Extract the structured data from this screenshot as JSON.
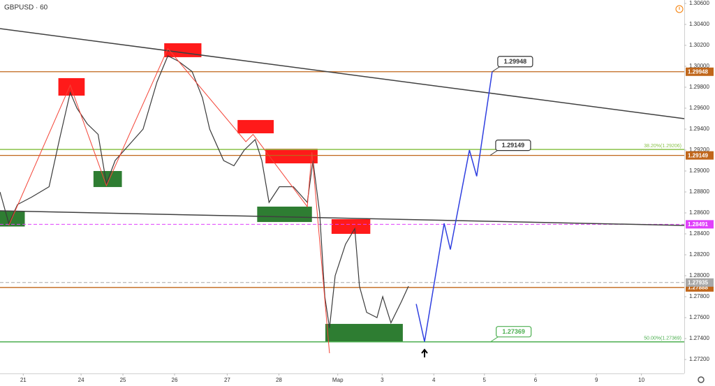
{
  "chart_data": {
    "type": "line",
    "title": "GBPUSD · 60",
    "color": "#3a3a3a",
    "x": [
      -0.45,
      -0.28,
      -0.11,
      0.16,
      0.5,
      0.7,
      0.91,
      1.04,
      1.24,
      1.45,
      1.61,
      1.78,
      2.05,
      2.32,
      2.59,
      2.8,
      3,
      3.27,
      3.47,
      3.61,
      3.88,
      4.08,
      4.28,
      4.49,
      4.62,
      4.76,
      4.96,
      5.23,
      5.5,
      5.61,
      5.74,
      5.84,
      5.93,
      6.04,
      6.24,
      6.42,
      6.51,
      6.65,
      6.85,
      6.96,
      7.12,
      7.32,
      7.46
    ],
    "values": [
      1.288,
      1.285,
      1.2868,
      1.2875,
      1.2885,
      1.293,
      1.2975,
      1.296,
      1.2945,
      1.2935,
      1.2888,
      1.291,
      1.2925,
      1.294,
      1.2985,
      1.301,
      1.3005,
      1.2995,
      1.297,
      1.294,
      1.291,
      1.2905,
      1.292,
      1.293,
      1.291,
      1.287,
      1.2885,
      1.2885,
      1.287,
      1.291,
      1.286,
      1.278,
      1.275,
      1.28,
      1.283,
      1.2845,
      1.279,
      1.2765,
      1.276,
      1.278,
      1.2755,
      1.2775,
      1.279
    ],
    "xlim": [
      -0.45,
      12.8
    ],
    "ylim": [
      1.27067,
      1.30633
    ],
    "xticks": [
      {
        "value": 0,
        "label": "21"
      },
      {
        "value": 1.12,
        "label": "24"
      },
      {
        "value": 1.93,
        "label": "25"
      },
      {
        "value": 2.93,
        "label": "26"
      },
      {
        "value": 3.95,
        "label": "27"
      },
      {
        "value": 4.95,
        "label": "28"
      },
      {
        "value": 6.09,
        "label": "Мар"
      },
      {
        "value": 6.95,
        "label": "3"
      },
      {
        "value": 7.95,
        "label": "4"
      },
      {
        "value": 8.93,
        "label": "5"
      },
      {
        "value": 9.92,
        "label": "6"
      },
      {
        "value": 11.1,
        "label": "9"
      },
      {
        "value": 11.97,
        "label": "10"
      }
    ],
    "yticks": [
      {
        "value": 1.306,
        "label": "1.30600"
      },
      {
        "value": 1.304,
        "label": "1.30400"
      },
      {
        "value": 1.302,
        "label": "1.30200"
      },
      {
        "value": 1.3,
        "label": "1.30000"
      },
      {
        "value": 1.298,
        "label": "1.29800"
      },
      {
        "value": 1.296,
        "label": "1.29600"
      },
      {
        "value": 1.294,
        "label": "1.29400"
      },
      {
        "value": 1.292,
        "label": "1.29200"
      },
      {
        "value": 1.29,
        "label": "1.29000"
      },
      {
        "value": 1.288,
        "label": "1.28800"
      },
      {
        "value": 1.286,
        "label": "1.28600"
      },
      {
        "value": 1.284,
        "label": "1.28400"
      },
      {
        "value": 1.282,
        "label": "1.28200"
      },
      {
        "value": 1.28,
        "label": "1.28000"
      },
      {
        "value": 1.278,
        "label": "1.27800"
      },
      {
        "value": 1.276,
        "label": "1.27600"
      },
      {
        "value": 1.274,
        "label": "1.27400"
      },
      {
        "value": 1.272,
        "label": "1.27200"
      }
    ],
    "levels": [
      {
        "value": 1.29948,
        "color": "#c0661a"
      },
      {
        "value": 1.29149,
        "color": "#c0661a"
      },
      {
        "value": 1.27888,
        "color": "#c0661a"
      },
      {
        "value": 1.28491,
        "color": "#e040fb",
        "dashed": true
      },
      {
        "value": 1.27935,
        "color": "#a8a8a8",
        "dashed": true
      }
    ],
    "fib_levels": [
      {
        "value": 1.29206,
        "label": "38.20%(1.29206)",
        "color": "#8bc34a"
      },
      {
        "value": 1.27369,
        "label": "50.00%(1.27369)",
        "color": "#4caf50"
      }
    ],
    "trendlines": [
      {
        "x": [
          -0.45,
          12.8
        ],
        "values": [
          1.3036,
          1.295
        ],
        "color": "#404040"
      },
      {
        "x": [
          -0.45,
          12.8
        ],
        "values": [
          1.2862,
          1.2848
        ],
        "color": "#404040"
      }
    ],
    "zigzag": {
      "color": "#f44336",
      "x": [
        -0.28,
        0.91,
        1.61,
        2.8,
        4.31,
        4.45,
        5.5,
        5.59,
        5.93
      ],
      "values": [
        1.2848,
        1.2982,
        1.2886,
        1.3017,
        1.2928,
        1.2935,
        1.2866,
        1.2918,
        1.2726
      ]
    },
    "projection": {
      "color": "#2f3fe0",
      "x": [
        7.61,
        7.77,
        8.15,
        8.27,
        8.64,
        8.78,
        9.08
      ],
      "values": [
        1.2773,
        1.2737,
        1.285,
        1.2825,
        1.292,
        1.2895,
        1.2995
      ]
    },
    "zones": [
      {
        "x": [
          0.68,
          1.19
        ],
        "values": [
          1.29887,
          1.2972
        ],
        "color": "#ff1a1a"
      },
      {
        "x": [
          2.73,
          3.45
        ],
        "values": [
          1.3022,
          1.30087
        ],
        "color": "#ff1a1a"
      },
      {
        "x": [
          4.15,
          4.85
        ],
        "values": [
          1.29487,
          1.2936
        ],
        "color": "#ff1a1a"
      },
      {
        "x": [
          4.69,
          5.7
        ],
        "values": [
          1.29213,
          1.29073
        ],
        "color": "#ff1a1a"
      },
      {
        "x": [
          5.97,
          6.72
        ],
        "values": [
          1.2854,
          1.284
        ],
        "color": "#ff1a1a"
      },
      {
        "x": [
          -0.45,
          0.03
        ],
        "values": [
          1.2862,
          1.2847
        ],
        "color": "#2e7d32"
      },
      {
        "x": [
          1.36,
          1.91
        ],
        "values": [
          1.29,
          1.28847
        ],
        "color": "#2e7d32"
      },
      {
        "x": [
          4.53,
          5.59
        ],
        "values": [
          1.2866,
          1.28513
        ],
        "color": "#2e7d32"
      },
      {
        "x": [
          5.85,
          7.35
        ],
        "values": [
          1.2754,
          1.27373
        ],
        "color": "#2e7d32"
      }
    ],
    "callouts": [
      {
        "x": 9.08,
        "value": 1.29948,
        "color": "#333333"
      },
      {
        "x": 9.04,
        "value": 1.29149,
        "color": "#333333"
      },
      {
        "x": 9.05,
        "value": 1.27369,
        "color": "#4caf50"
      }
    ]
  }
}
